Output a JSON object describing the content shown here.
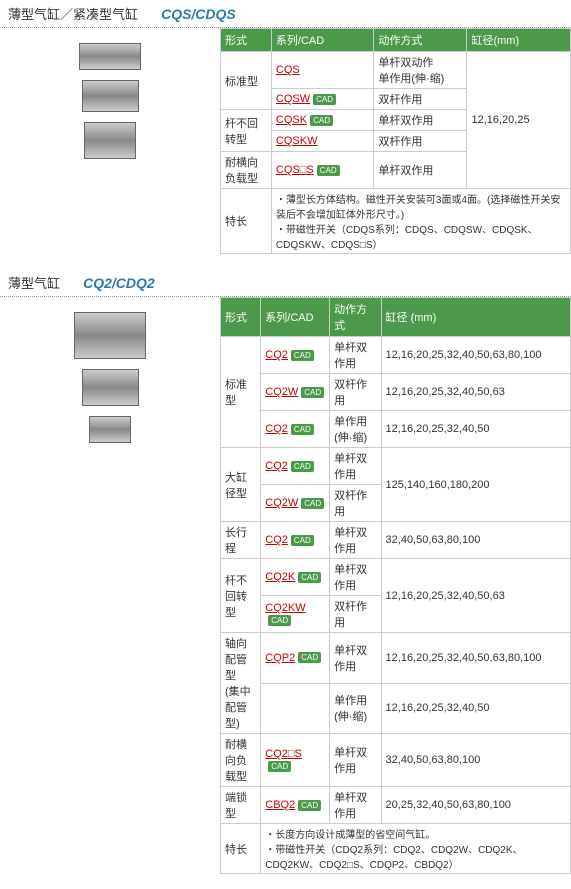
{
  "s1": {
    "title_cn": "薄型气缸／紧凑型气缸",
    "title_en": "CQS/CDQS",
    "headers": [
      "形式",
      "系列/CAD",
      "动作方式",
      "缸径(mm)"
    ],
    "rows": [
      {
        "form": "标准型",
        "rowspan": 2,
        "cells": [
          [
            "CQS",
            true
          ],
          "单杆双动作\n单作用(伸·缩)"
        ]
      },
      {
        "cells": [
          [
            "CQSW",
            true
          ],
          "双杆作用"
        ]
      },
      {
        "form": "杆不回转型",
        "rowspan": 2,
        "cells": [
          [
            "CQSK",
            true
          ],
          "单杆双作用"
        ]
      },
      {
        "cells": [
          [
            "CQSKW",
            false
          ],
          "双杆作用"
        ]
      },
      {
        "form": "耐横向负载型",
        "cells": [
          [
            "CQS□S",
            true
          ],
          "单杆双作用"
        ]
      }
    ],
    "diameter": "12,16,20,25",
    "feature_label": "特长",
    "features": "・薄型长方体结构。磁性开关安装可3面或4面。(选择磁性开关安装后不会增加缸体外形尺寸。)\n・带磁性开关（CDQS系列：CDQS、CDQSW、CDQSK、CDQSKW、CDQS□S）"
  },
  "s2": {
    "title_cn": "薄型气缸",
    "title_en": "CQ2/CDQ2",
    "headers": [
      "形式",
      "系列/CAD",
      "动作方式",
      "缸径 (mm)"
    ],
    "rows": [
      {
        "form": "标准型",
        "rowspan": 3,
        "series": "CQ2",
        "cad": true,
        "action": "单杆双作用",
        "dia": "12,16,20,25,32,40,50,63,80,100"
      },
      {
        "series": "CQ2W",
        "cad": true,
        "action": "双杆作用",
        "dia": "12,16,20,25,32,40,50,63"
      },
      {
        "series": "CQ2",
        "cad": true,
        "action": "单作用(伸·缩)",
        "dia": "12,16,20,25,32,40,50"
      },
      {
        "form": "大缸径型",
        "rowspan": 2,
        "series": "CQ2",
        "cad": true,
        "action": "单杆双作用",
        "dia": "125,140,160,180,200",
        "dr": 2
      },
      {
        "series": "CQ2W",
        "cad": true,
        "action": "双杆作用"
      },
      {
        "form": "长行程",
        "series": "CQ2",
        "cad": true,
        "action": "单杆双作用",
        "dia": "32,40,50,63,80,100"
      },
      {
        "form": "杆不回转型",
        "rowspan": 2,
        "series": "CQ2K",
        "cad": true,
        "action": "单杆双作用",
        "dia": "12,16,20,25,32,40,50,63",
        "dr": 2
      },
      {
        "series": "CQ2KW",
        "cad": true,
        "action": "双杆作用"
      },
      {
        "form": "轴向配管型\n(集中配管型)",
        "rowspan": 2,
        "series": "CQP2",
        "cad": true,
        "action": "单杆双作用",
        "dia": "12,16,20,25,32,40,50,63,80,100"
      },
      {
        "series": "",
        "cad": false,
        "action": "单作用(伸·缩)",
        "dia": "12,16,20,25,32,40,50"
      },
      {
        "form": "耐横向负载型",
        "series": "CQ2□S",
        "cad": true,
        "action": "单杆双作用",
        "dia": "32,40,50,63,80,100"
      },
      {
        "form": "端锁型",
        "series": "CBQ2",
        "cad": true,
        "action": "单杆双作用",
        "dia": "20,25,32,40,50,63,80,100"
      }
    ],
    "feature_label": "特长",
    "features": "・长度方向设计成薄型的省空间气缸。\n・带磁性开关（CDQ2系列：CDQ2、CDQ2W、CDQ2K、CDQ2KW、CDQ2□S、CDQP2、CBDQ2）"
  }
}
